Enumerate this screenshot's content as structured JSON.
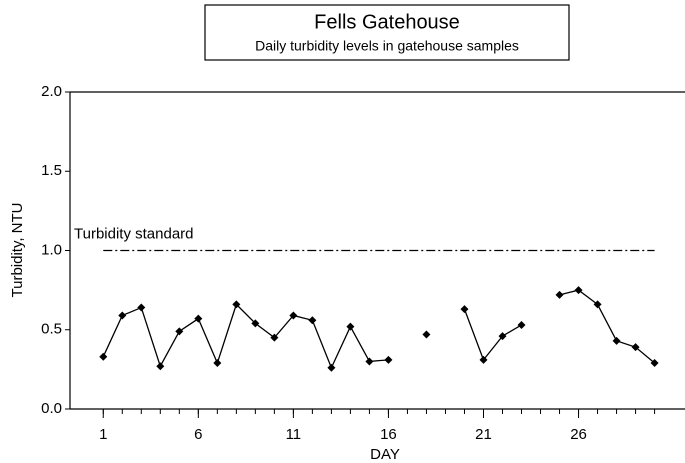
{
  "chart_data": {
    "type": "line",
    "title": "Fells Gatehouse",
    "subtitle": "Daily turbidity levels in gatehouse samples",
    "x_label": "DAY",
    "y_label": "Turbidity, NTU",
    "x": [
      1,
      2,
      3,
      4,
      5,
      6,
      7,
      8,
      9,
      10,
      11,
      12,
      13,
      14,
      15,
      16,
      17,
      18,
      19,
      20,
      21,
      22,
      23,
      24,
      25,
      26,
      27,
      28,
      29,
      30
    ],
    "series": [
      {
        "name": "Turbidity",
        "color": "#000000",
        "values": [
          0.33,
          0.59,
          0.64,
          0.27,
          0.49,
          0.57,
          0.29,
          0.66,
          0.54,
          0.45,
          0.59,
          0.56,
          0.26,
          0.52,
          0.3,
          0.31,
          null,
          0.47,
          null,
          0.63,
          0.31,
          0.46,
          0.53,
          null,
          0.72,
          0.75,
          0.66,
          0.43,
          0.39,
          0.29
        ]
      }
    ],
    "xlim": [
      -0.75,
      31.6
    ],
    "ylim": [
      0,
      2
    ],
    "xticks": [
      1,
      6,
      11,
      16,
      21,
      26
    ],
    "xminorticks": [
      1,
      2,
      3,
      4,
      5,
      6,
      7,
      8,
      9,
      10,
      11,
      12,
      13,
      14,
      15,
      16,
      17,
      18,
      19,
      20,
      21,
      22,
      23,
      24,
      25,
      26,
      27,
      28,
      29,
      30
    ],
    "yticks": [
      {
        "value": 0,
        "label": "0.0"
      },
      {
        "value": 0.5,
        "label": "0.5"
      },
      {
        "value": 1,
        "label": "1.0"
      },
      {
        "value": 1.5,
        "label": "1.5"
      },
      {
        "value": 2,
        "label": "2.0"
      }
    ],
    "reference_line": {
      "label": "Turbidity standard",
      "value": 1.0
    },
    "grid": false
  }
}
